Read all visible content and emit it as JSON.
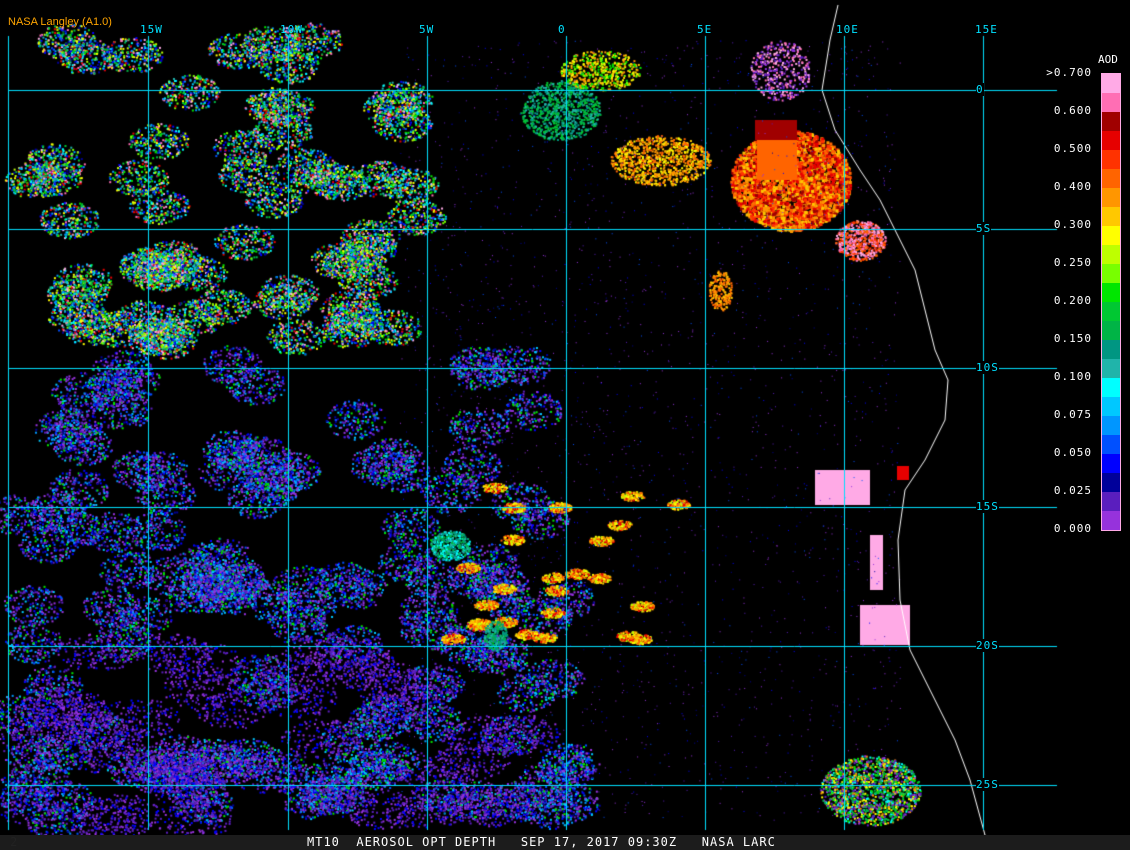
{
  "logo": "NASA Langley (A1.0)",
  "caption": "MT10  AEROSOL OPT DEPTH   SEP 17, 2017 09:30Z   NASA LARC",
  "frame_number": "2",
  "longitude_labels": [
    "15W",
    "10W",
    "5W",
    "0",
    "5E",
    "10E",
    "15E"
  ],
  "latitude_labels": [
    "0",
    "5S",
    "10S",
    "15S",
    "20S",
    "25S"
  ],
  "grid_color": "#00e0ff",
  "colorbar": {
    "title": "AOD",
    "tick_labels": [
      ">0.700",
      "0.600",
      "0.500",
      "0.400",
      "0.300",
      "0.250",
      "0.200",
      "0.150",
      "0.100",
      "0.075",
      "0.050",
      "0.025",
      "0.000"
    ],
    "colors": [
      "#ffaae6",
      "#ff6eb4",
      "#a00000",
      "#e60000",
      "#ff3200",
      "#ff6400",
      "#ff9600",
      "#ffc800",
      "#ffff00",
      "#beff00",
      "#78ff00",
      "#00e600",
      "#00c832",
      "#00b446",
      "#009682",
      "#20b4aa",
      "#00ffff",
      "#00c8ff",
      "#0096ff",
      "#0050ff",
      "#0000ff",
      "#00009a",
      "#5a1ebe",
      "#9632dc"
    ]
  }
}
